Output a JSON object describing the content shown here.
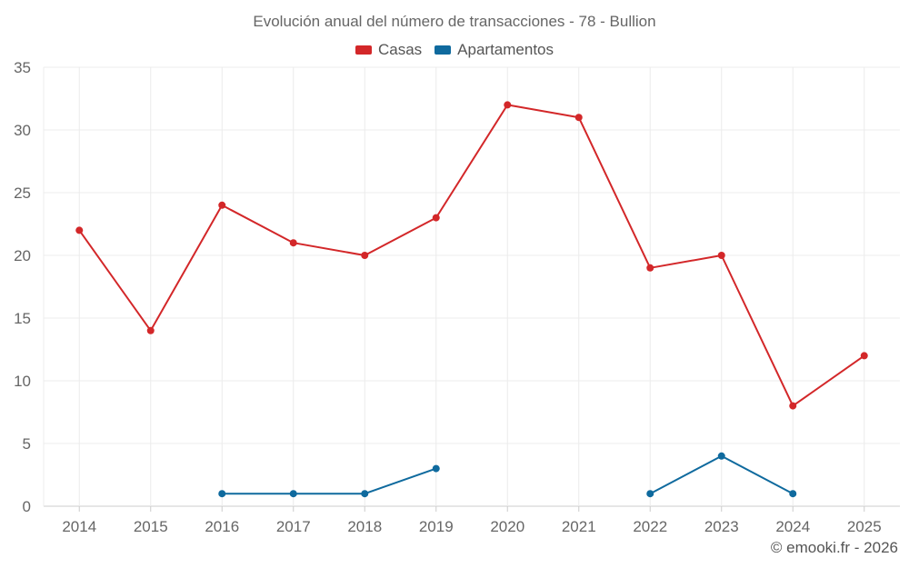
{
  "chart_data": {
    "type": "line",
    "title": "Evolución anual del número de transacciones - 78 - Bullion",
    "categories": [
      "2014",
      "2015",
      "2016",
      "2017",
      "2018",
      "2019",
      "2020",
      "2021",
      "2022",
      "2023",
      "2024",
      "2025"
    ],
    "series": [
      {
        "name": "Casas",
        "color": "#d32729",
        "values": [
          22,
          14,
          24,
          21,
          20,
          23,
          32,
          31,
          19,
          20,
          8,
          12
        ]
      },
      {
        "name": "Apartamentos",
        "color": "#0f6a9e",
        "values": [
          null,
          null,
          1,
          1,
          1,
          3,
          null,
          null,
          1,
          4,
          1,
          null
        ]
      }
    ],
    "ylim": [
      0,
      35
    ],
    "yticks": [
      0,
      5,
      10,
      15,
      20,
      25,
      30,
      35
    ],
    "xlabel": "",
    "ylabel": "",
    "grid": true,
    "legend_position": "top-center"
  },
  "credit": "© emooki.fr - 2026"
}
